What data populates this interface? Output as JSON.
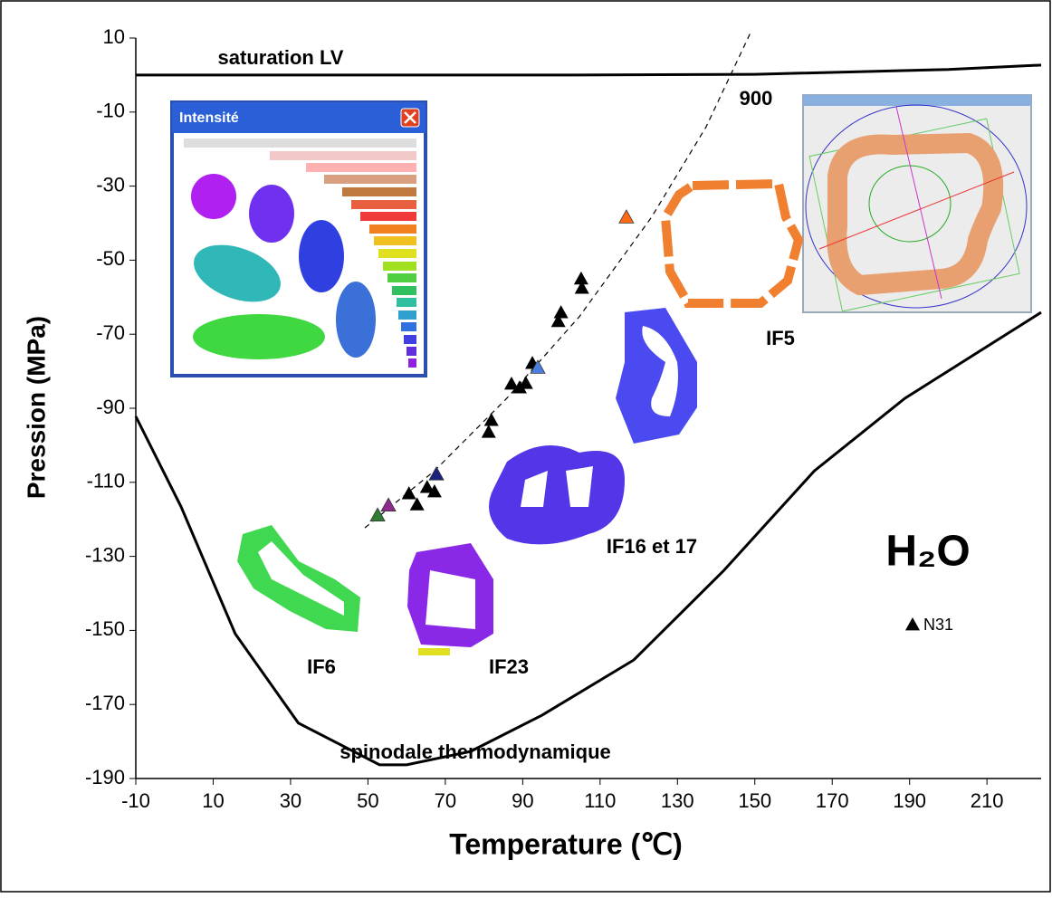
{
  "chart_data": {
    "type": "scatter",
    "xlabel": "Temperature (℃)",
    "ylabel": "Pression (MPa)",
    "xlim": [
      -10,
      224
    ],
    "ylim": [
      -190,
      10
    ],
    "xticks": [
      -10,
      10,
      30,
      50,
      70,
      90,
      110,
      130,
      150,
      170,
      190,
      210
    ],
    "yticks": [
      10,
      -10,
      -30,
      -50,
      -70,
      -90,
      -110,
      -130,
      -150,
      -170,
      -190
    ],
    "series": [
      {
        "name": "N31",
        "color": "#000000",
        "x": [
          60.6,
          62.7,
          65.3,
          67.2,
          81.2,
          81.9,
          87.1,
          89.2,
          90.8,
          92.5,
          99.2,
          99.9,
          105.3,
          105.1
        ],
        "values": [
          -113,
          -116,
          -111.3,
          -112.5,
          -96.4,
          -93.2,
          -83.4,
          -84.4,
          -83.2,
          -77.8,
          -66.5,
          -64.1,
          -57.5,
          -55
        ]
      }
    ],
    "highlighted_points": {
      "x": [
        52.5,
        55.3,
        67.7,
        93.9,
        116.8
      ],
      "values": [
        -118.9,
        -116.2,
        -107.8,
        -79,
        -38.4
      ],
      "colors": [
        "#2e7d32",
        "#8e2a8e",
        "#1a237e",
        "#4a7fe0",
        "#ff6a13"
      ]
    },
    "curves": [
      {
        "style": "solid",
        "x": [
          -10,
          100,
          150,
          200,
          224
        ],
        "values": [
          0,
          0,
          0.2,
          1.5,
          2.7
        ]
      },
      {
        "style": "solid",
        "x": [
          -10,
          1.7,
          15.7,
          32,
          53,
          60,
          76.5,
          95,
          118.7,
          142,
          165.4,
          188.8,
          224
        ],
        "values": [
          -92.2,
          -116.6,
          -150.9,
          -175,
          -186.3,
          -186.3,
          -182.7,
          -172.9,
          -158,
          -133.8,
          -106.9,
          -87.3,
          -64.1
        ]
      },
      {
        "style": "dashed",
        "x": [
          49.2,
          67.2,
          85.9,
          104.6,
          123.3,
          137.4,
          149
        ],
        "values": [
          -122.3,
          -106.9,
          -87.3,
          -65.3,
          -38.4,
          -14,
          11.7
        ]
      }
    ],
    "annotations": [
      "saturation LV",
      "900",
      "IF5",
      "IF16 et 17",
      "H₂O",
      "IF6",
      "IF23",
      "spinodale thermodynamique"
    ],
    "inset_title": "Intensité"
  }
}
